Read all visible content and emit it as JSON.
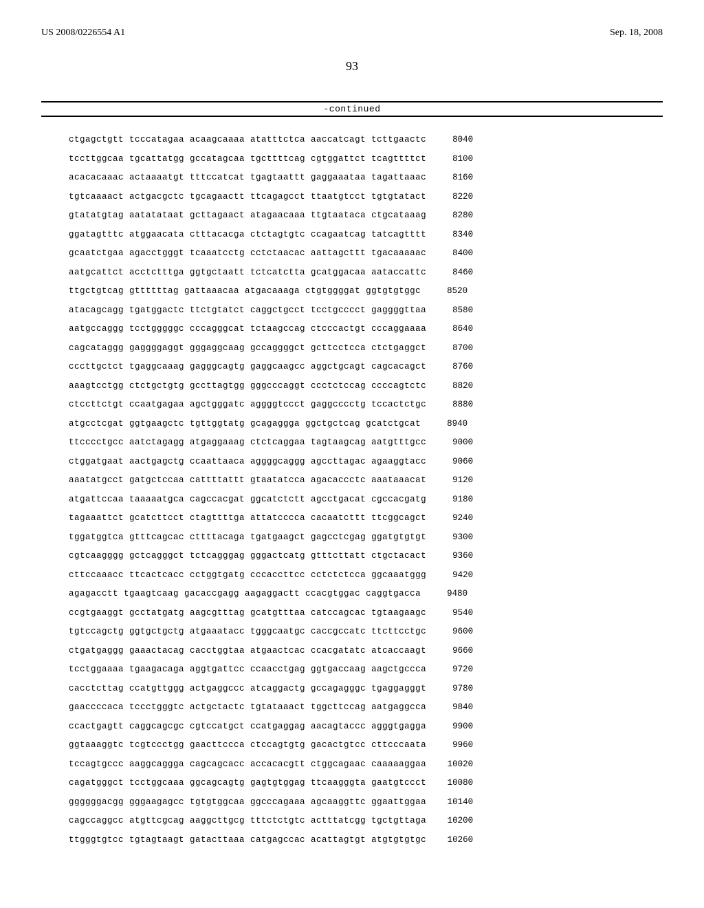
{
  "header": {
    "publication_number": "US 2008/0226554 A1",
    "publication_date": "Sep. 18, 2008"
  },
  "page_number": "93",
  "continued_label": "-continued",
  "sequence_rows": [
    {
      "seq": "ctgagctgtt tcccatagaa acaagcaaaa atatttctca aaccatcagt tcttgaactc",
      "pos": "8040"
    },
    {
      "seq": "tccttggcaa tgcattatgg gccatagcaa tgcttttcag cgtggattct tcagttttct",
      "pos": "8100"
    },
    {
      "seq": "acacacaaac actaaaatgt tttccatcat tgagtaattt gaggaaataa tagattaaac",
      "pos": "8160"
    },
    {
      "seq": "tgtcaaaact actgacgctc tgcagaactt ttcagagcct ttaatgtcct tgtgtatact",
      "pos": "8220"
    },
    {
      "seq": "gtatatgtag aatatataat gcttagaact atagaacaaa ttgtaataca ctgcataaag",
      "pos": "8280"
    },
    {
      "seq": "ggatagtttc atggaacata ctttacacga ctctagtgtc ccagaatcag tatcagtttt",
      "pos": "8340"
    },
    {
      "seq": "gcaatctgaa agacctgggt tcaaatcctg cctctaacac aattagcttt tgacaaaaac",
      "pos": "8400"
    },
    {
      "seq": "aatgcattct acctctttga ggtgctaatt tctcatctta gcatggacaa aataccattc",
      "pos": "8460"
    },
    {
      "seq": "ttgctgtcag gttttttag gattaaacaa atgacaaaga ctgtggggat ggtgtgtggc",
      "pos": "8520"
    },
    {
      "seq": "atacagcagg tgatggactc ttctgtatct caggctgcct tcctgcccct gaggggttaa",
      "pos": "8580"
    },
    {
      "seq": "aatgccaggg tcctgggggc cccagggcat tctaagccag ctcccactgt cccaggaaaa",
      "pos": "8640"
    },
    {
      "seq": "cagcataggg gaggggaggt gggaggcaag gccaggggct gcttcctcca ctctgaggct",
      "pos": "8700"
    },
    {
      "seq": "cccttgctct tgaggcaaag gagggcagtg gaggcaagcc aggctgcagt cagcacagct",
      "pos": "8760"
    },
    {
      "seq": "aaagtcctgg ctctgctgtg gccttagtgg gggcccaggt ccctctccag ccccagtctc",
      "pos": "8820"
    },
    {
      "seq": "ctccttctgt ccaatgagaa agctgggatc aggggtccct gaggcccctg tccactctgc",
      "pos": "8880"
    },
    {
      "seq": "atgcctcgat ggtgaagctc tgttggtatg gcagaggga ggctgctcag gcatctgcat",
      "pos": "8940"
    },
    {
      "seq": "ttcccctgcc aatctagagg atgaggaaag ctctcaggaa tagtaagcag aatgtttgcc",
      "pos": "9000"
    },
    {
      "seq": "ctggatgaat aactgagctg ccaattaaca aggggcaggg agccttagac agaaggtacc",
      "pos": "9060"
    },
    {
      "seq": "aaatatgcct gatgctccaa cattttattt gtaatatcca agacaccctc aaataaacat",
      "pos": "9120"
    },
    {
      "seq": "atgattccaa taaaaatgca cagccacgat ggcatctctt agcctgacat cgccacgatg",
      "pos": "9180"
    },
    {
      "seq": "tagaaattct gcatcttcct ctagttttga attatcccca cacaatcttt ttcggcagct",
      "pos": "9240"
    },
    {
      "seq": "tggatggtca gtttcagcac cttttacaga tgatgaagct gagcctcgag ggatgtgtgt",
      "pos": "9300"
    },
    {
      "seq": "cgtcaagggg gctcagggct tctcagggag gggactcatg gtttcttatt ctgctacact",
      "pos": "9360"
    },
    {
      "seq": "cttccaaacc ttcactcacc cctggtgatg cccaccttcc cctctctcca ggcaaatggg",
      "pos": "9420"
    },
    {
      "seq": "agagacctt tgaagtcaag gacaccgagg aagaggactt ccacgtggac caggtgacca",
      "pos": "9480"
    },
    {
      "seq": "ccgtgaaggt gcctatgatg aagcgtttag gcatgtttaa catccagcac tgtaagaagc",
      "pos": "9540"
    },
    {
      "seq": "tgtccagctg ggtgctgctg atgaaatacc tgggcaatgc caccgccatc ttcttcctgc",
      "pos": "9600"
    },
    {
      "seq": "ctgatgaggg gaaactacag cacctggtaa atgaactcac ccacgatatc atcaccaagt",
      "pos": "9660"
    },
    {
      "seq": "tcctggaaaa tgaagacaga aggtgattcc ccaacctgag ggtgaccaag aagctgccca",
      "pos": "9720"
    },
    {
      "seq": "cacctcttag ccatgttggg actgaggccc atcaggactg gccagagggc tgaggagggt",
      "pos": "9780"
    },
    {
      "seq": "gaaccccaca tccctgggtc actgctactc tgtataaact tggcttccag aatgaggcca",
      "pos": "9840"
    },
    {
      "seq": "ccactgagtt caggcagcgc cgtccatgct ccatgaggag aacagtaccc agggtgagga",
      "pos": "9900"
    },
    {
      "seq": "ggtaaaggtc tcgtccctgg gaacttccca ctccagtgtg gacactgtcc cttcccaata",
      "pos": "9960"
    },
    {
      "seq": "tccagtgccc aaggcaggga cagcagcacc accacacgtt ctggcagaac caaaaaggaa",
      "pos": "10020"
    },
    {
      "seq": "cagatgggct tcctggcaaa ggcagcagtg gagtgtggag ttcaagggta gaatgtccct",
      "pos": "10080"
    },
    {
      "seq": "ggggggacgg gggaagagcc tgtgtggcaa ggcccagaaa agcaaggttc ggaattggaa",
      "pos": "10140"
    },
    {
      "seq": "cagccaggcc atgttcgcag aaggcttgcg tttctctgtc actttatcgg tgctgttaga",
      "pos": "10200"
    },
    {
      "seq": "ttgggtgtcc tgtagtaagt gatacttaaa catgagccac acattagtgt atgtgtgtgc",
      "pos": "10260"
    }
  ]
}
